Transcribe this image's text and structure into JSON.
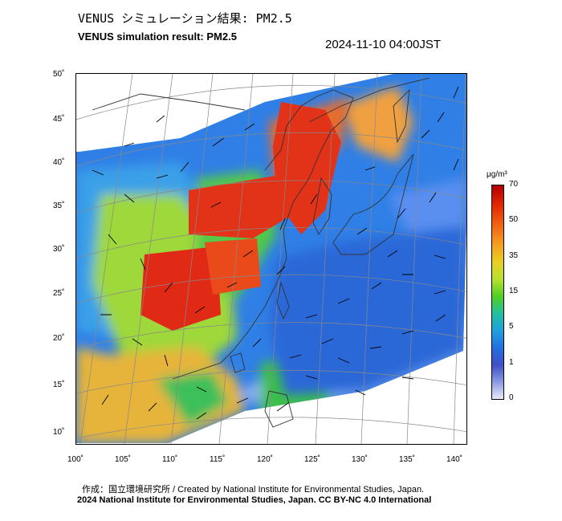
{
  "header": {
    "title_jp": "VENUS シミュレーション結果: PM2.5",
    "title_en": "VENUS simulation result: PM2.5",
    "timestamp": "2024-11-10 04:00JST"
  },
  "map": {
    "lon_ticks": [
      "100˚",
      "105˚",
      "110˚",
      "115˚",
      "120˚",
      "125˚",
      "130˚",
      "135˚",
      "140˚"
    ],
    "lat_ticks": [
      "50˚",
      "45˚",
      "40˚",
      "35˚",
      "30˚",
      "25˚",
      "20˚",
      "15˚",
      "10˚"
    ],
    "colors": {
      "frame": "#000000",
      "coast": "#555555",
      "grid": "#888888"
    }
  },
  "colorbar": {
    "unit": "μg/m³",
    "labels": [
      "70",
      "50",
      "35",
      "15",
      "5",
      "1",
      "0"
    ]
  },
  "footer": {
    "credit_line1": "作成：国立環境研究所 / Created by National Institute for Environmental Studies, Japan.",
    "credit_line2": "2024 National Institute for Environmental Studies, Japan. CC BY-NC 4.0 International"
  }
}
